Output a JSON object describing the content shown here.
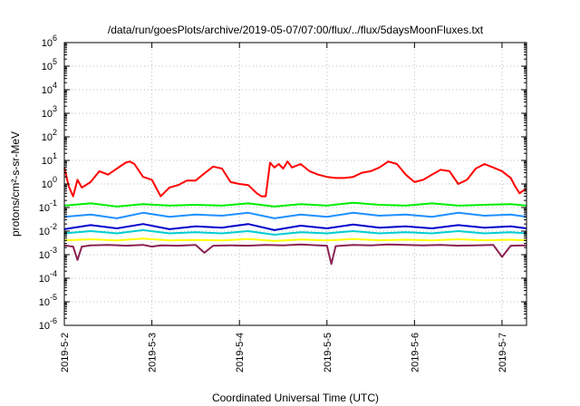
{
  "chart_data": {
    "type": "line",
    "title": "/data/run/goesPlots/archive/2019-05-07/07:00/flux/../flux/5daysMoonFluxes.txt",
    "xlabel": "Coordinated Universal Time (UTC)",
    "ylabel": "protons/cm²-s-sr-MeV",
    "yscale": "log",
    "ylim": [
      1e-06,
      1000000.0
    ],
    "xlim": [
      0,
      5.28
    ],
    "x_ticks": [
      {
        "x": 0,
        "label": "2019-5-2"
      },
      {
        "x": 1,
        "label": "2019-5-3"
      },
      {
        "x": 2,
        "label": "2019-5-4"
      },
      {
        "x": 3,
        "label": "2019-5-5"
      },
      {
        "x": 4,
        "label": "2019-5-6"
      },
      {
        "x": 5,
        "label": "2019-5-7"
      }
    ],
    "y_ticks": [
      {
        "exp": 6,
        "label": "10",
        "sup": "6"
      },
      {
        "exp": 5,
        "label": "10",
        "sup": "5"
      },
      {
        "exp": 4,
        "label": "10",
        "sup": "4"
      },
      {
        "exp": 3,
        "label": "10",
        "sup": "3"
      },
      {
        "exp": 2,
        "label": "10",
        "sup": "2"
      },
      {
        "exp": 1,
        "label": "10",
        "sup": "1"
      },
      {
        "exp": 0,
        "label": "10",
        "sup": "0"
      },
      {
        "exp": -1,
        "label": "10",
        "sup": "-1"
      },
      {
        "exp": -2,
        "label": "10",
        "sup": "-2"
      },
      {
        "exp": -3,
        "label": "10",
        "sup": "-3"
      },
      {
        "exp": -4,
        "label": "10",
        "sup": "-4"
      },
      {
        "exp": -5,
        "label": "10",
        "sup": "-5"
      },
      {
        "exp": -6,
        "label": "10",
        "sup": "-6"
      }
    ],
    "grid": true,
    "legend": "none",
    "series": [
      {
        "color": "#ff0000",
        "x": [
          0,
          0.05,
          0.1,
          0.15,
          0.2,
          0.3,
          0.4,
          0.5,
          0.6,
          0.7,
          0.75,
          0.8,
          0.9,
          1.0,
          1.1,
          1.2,
          1.3,
          1.4,
          1.5,
          1.6,
          1.7,
          1.8,
          1.9,
          2.0,
          2.1,
          2.2,
          2.25,
          2.3,
          2.35,
          2.4,
          2.45,
          2.5,
          2.55,
          2.6,
          2.7,
          2.8,
          2.9,
          3.0,
          3.1,
          3.2,
          3.3,
          3.4,
          3.5,
          3.6,
          3.7,
          3.8,
          3.9,
          4.0,
          4.1,
          4.2,
          4.3,
          4.4,
          4.5,
          4.6,
          4.7,
          4.8,
          4.9,
          5.0,
          5.1,
          5.15,
          5.2,
          5.25,
          5.28
        ],
        "y": [
          5,
          0.8,
          0.3,
          1.5,
          0.7,
          1.2,
          3.5,
          2.5,
          4.5,
          8,
          9,
          7,
          2,
          1.5,
          0.3,
          0.7,
          0.9,
          1.4,
          1.4,
          2.8,
          5.5,
          4.5,
          1.2,
          1.0,
          0.9,
          0.4,
          0.3,
          0.3,
          8,
          5,
          7,
          4.5,
          9,
          5,
          7,
          3.5,
          2.5,
          2.0,
          1.8,
          1.8,
          2.0,
          3.0,
          3.5,
          5.0,
          9,
          7,
          2.5,
          1.2,
          1.5,
          2.5,
          4.0,
          3.5,
          1.0,
          1.5,
          4.5,
          7,
          5,
          3.5,
          1.8,
          0.8,
          0.4,
          0.55,
          0.6
        ]
      },
      {
        "color": "#00ee00",
        "x": [
          0,
          0.3,
          0.6,
          0.9,
          1.2,
          1.5,
          1.8,
          2.1,
          2.4,
          2.7,
          3.0,
          3.3,
          3.6,
          3.9,
          4.2,
          4.5,
          4.8,
          5.1,
          5.28
        ],
        "y": [
          0.12,
          0.15,
          0.11,
          0.14,
          0.12,
          0.13,
          0.12,
          0.15,
          0.11,
          0.14,
          0.12,
          0.16,
          0.13,
          0.12,
          0.15,
          0.12,
          0.13,
          0.14,
          0.12
        ]
      },
      {
        "color": "#1e90ff",
        "x": [
          0,
          0.3,
          0.6,
          0.9,
          1.2,
          1.5,
          1.8,
          2.1,
          2.4,
          2.7,
          3.0,
          3.3,
          3.6,
          3.9,
          4.2,
          4.5,
          4.8,
          5.1,
          5.28
        ],
        "y": [
          0.04,
          0.05,
          0.035,
          0.06,
          0.04,
          0.05,
          0.045,
          0.06,
          0.035,
          0.05,
          0.04,
          0.06,
          0.045,
          0.05,
          0.04,
          0.06,
          0.045,
          0.05,
          0.04
        ]
      },
      {
        "color": "#0000cd",
        "x": [
          0,
          0.3,
          0.6,
          0.9,
          1.2,
          1.5,
          1.8,
          2.1,
          2.4,
          2.7,
          3.0,
          3.3,
          3.6,
          3.9,
          4.2,
          4.5,
          4.8,
          5.1,
          5.28
        ],
        "y": [
          0.012,
          0.018,
          0.013,
          0.02,
          0.012,
          0.016,
          0.014,
          0.02,
          0.011,
          0.017,
          0.013,
          0.019,
          0.014,
          0.016,
          0.013,
          0.018,
          0.014,
          0.016,
          0.013
        ]
      },
      {
        "color": "#00ced1",
        "x": [
          0,
          0.3,
          0.6,
          0.9,
          1.2,
          1.5,
          1.8,
          2.1,
          2.4,
          2.7,
          3.0,
          3.3,
          3.6,
          3.9,
          4.2,
          4.5,
          4.8,
          5.1,
          5.28
        ],
        "y": [
          0.008,
          0.01,
          0.008,
          0.011,
          0.008,
          0.009,
          0.008,
          0.01,
          0.007,
          0.009,
          0.008,
          0.01,
          0.008,
          0.009,
          0.008,
          0.01,
          0.008,
          0.009,
          0.008
        ]
      },
      {
        "color": "#ffff00",
        "x": [
          0,
          0.3,
          0.6,
          0.9,
          1.2,
          1.5,
          1.8,
          2.1,
          2.4,
          2.7,
          3.0,
          3.3,
          3.6,
          3.9,
          4.2,
          4.5,
          4.8,
          5.1,
          5.28
        ],
        "y": [
          0.004,
          0.0045,
          0.004,
          0.0048,
          0.004,
          0.0042,
          0.004,
          0.0046,
          0.0038,
          0.0044,
          0.004,
          0.0046,
          0.0041,
          0.0043,
          0.004,
          0.0045,
          0.0041,
          0.0043,
          0.004
        ]
      },
      {
        "color": "#8b2252",
        "x": [
          0,
          0.1,
          0.15,
          0.2,
          0.3,
          0.5,
          0.7,
          0.9,
          1.0,
          1.1,
          1.3,
          1.5,
          1.6,
          1.7,
          1.9,
          2.1,
          2.3,
          2.5,
          2.7,
          2.9,
          3.0,
          3.05,
          3.1,
          3.3,
          3.5,
          3.7,
          3.9,
          4.1,
          4.3,
          4.5,
          4.7,
          4.9,
          5.0,
          5.1,
          5.28
        ],
        "y": [
          0.0025,
          0.0022,
          0.0006,
          0.0022,
          0.0025,
          0.0026,
          0.0024,
          0.0026,
          0.0022,
          0.0025,
          0.0024,
          0.0026,
          0.0012,
          0.0024,
          0.0025,
          0.0024,
          0.0026,
          0.0025,
          0.0027,
          0.0025,
          0.0024,
          0.0004,
          0.0023,
          0.0026,
          0.0025,
          0.0027,
          0.0026,
          0.0025,
          0.0026,
          0.0024,
          0.0025,
          0.0026,
          0.0008,
          0.0024,
          0.0025
        ]
      }
    ]
  }
}
